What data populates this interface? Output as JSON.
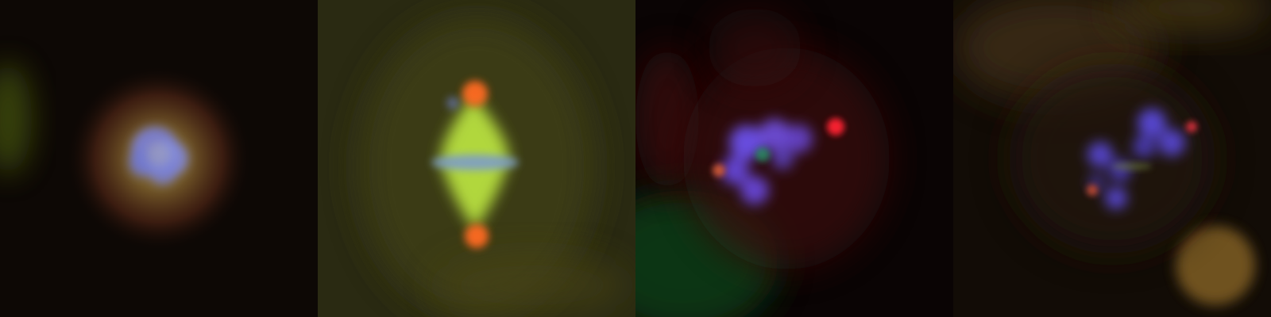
{
  "figure": {
    "panels": [
      {
        "id": "panel-1",
        "background": "#0d0805"
      },
      {
        "id": "panel-2",
        "background": "#2a2a12"
      },
      {
        "id": "panel-3",
        "background": "#0a0404"
      },
      {
        "id": "panel-4",
        "background": "#120c06"
      }
    ]
  }
}
